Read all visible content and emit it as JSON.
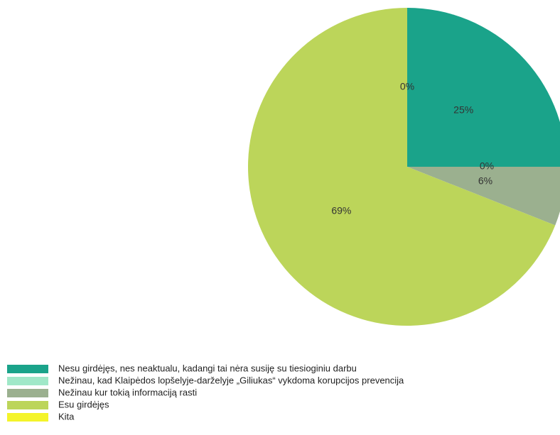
{
  "chart_data": {
    "type": "pie",
    "categories": [
      "Nesu girdėjęs, nes neaktualu, kadangi tai nėra susiję su tiesioginiu darbu",
      "Nežinau, kad Klaipėdos lopšelyje-darželyje „Giliukas“  vykdoma korupcijos prevencija",
      "Nežinau kur tokią informaciją rasti",
      "Esu girdėjęs",
      "Kita"
    ],
    "values": [
      25,
      0,
      6,
      69,
      0
    ],
    "value_labels": [
      "25%",
      "0%",
      "6%",
      "69%",
      "0%"
    ],
    "colors": [
      "#1aa38a",
      "#a0e8c8",
      "#9bb08f",
      "#bcd55a",
      "#f4f42a"
    ],
    "legend": "bottom-left"
  }
}
